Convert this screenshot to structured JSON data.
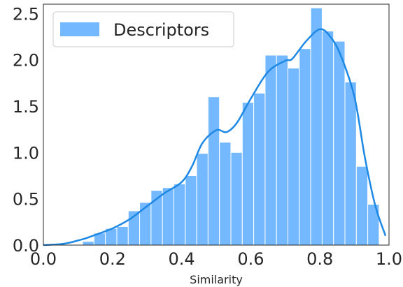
{
  "chart_data": {
    "type": "bar",
    "xlabel": "Similarity",
    "ylabel": "",
    "xlim": [
      0.0,
      1.0
    ],
    "ylim": [
      0.0,
      2.6
    ],
    "grid": false,
    "legend_position": "top-left",
    "x_ticks": [
      "0.0",
      "0.2",
      "0.4",
      "0.6",
      "0.8",
      "1.0"
    ],
    "y_ticks": [
      "0.0",
      "0.5",
      "1.0",
      "1.5",
      "2.0",
      "2.5"
    ],
    "bar_color": "#74b9ff",
    "line_color": "#1e88e5",
    "series": [
      {
        "name": "Descriptors",
        "bin_edges": [
          0.1135,
          0.1465,
          0.1795,
          0.2125,
          0.2455,
          0.2785,
          0.3115,
          0.3445,
          0.3775,
          0.4105,
          0.4435,
          0.4765,
          0.5095,
          0.5425,
          0.5755,
          0.6085,
          0.6415,
          0.6745,
          0.7075,
          0.7405,
          0.7735,
          0.8065,
          0.8395,
          0.8725,
          0.9055,
          0.9385,
          0.9715
        ],
        "values": [
          0.04,
          0.13,
          0.18,
          0.2,
          0.37,
          0.46,
          0.59,
          0.62,
          0.66,
          0.75,
          0.99,
          1.6,
          1.11,
          1.0,
          1.54,
          1.64,
          2.05,
          2.05,
          1.91,
          2.12,
          2.56,
          2.31,
          2.2,
          1.76,
          0.85,
          0.44
        ]
      }
    ],
    "kde": {
      "x": [
        0.0,
        0.05,
        0.08,
        0.1,
        0.12,
        0.15,
        0.2,
        0.25,
        0.3,
        0.35,
        0.4,
        0.43,
        0.46,
        0.5,
        0.53,
        0.56,
        0.6,
        0.65,
        0.7,
        0.72,
        0.76,
        0.8,
        0.83,
        0.86,
        0.9,
        0.93,
        0.96,
        0.99
      ],
      "y": [
        0.0,
        0.01,
        0.03,
        0.05,
        0.07,
        0.11,
        0.18,
        0.28,
        0.42,
        0.56,
        0.68,
        0.85,
        1.1,
        1.24,
        1.22,
        1.32,
        1.58,
        1.87,
        1.99,
        2.01,
        2.2,
        2.33,
        2.25,
        2.05,
        1.6,
        0.95,
        0.43,
        0.1
      ]
    }
  }
}
